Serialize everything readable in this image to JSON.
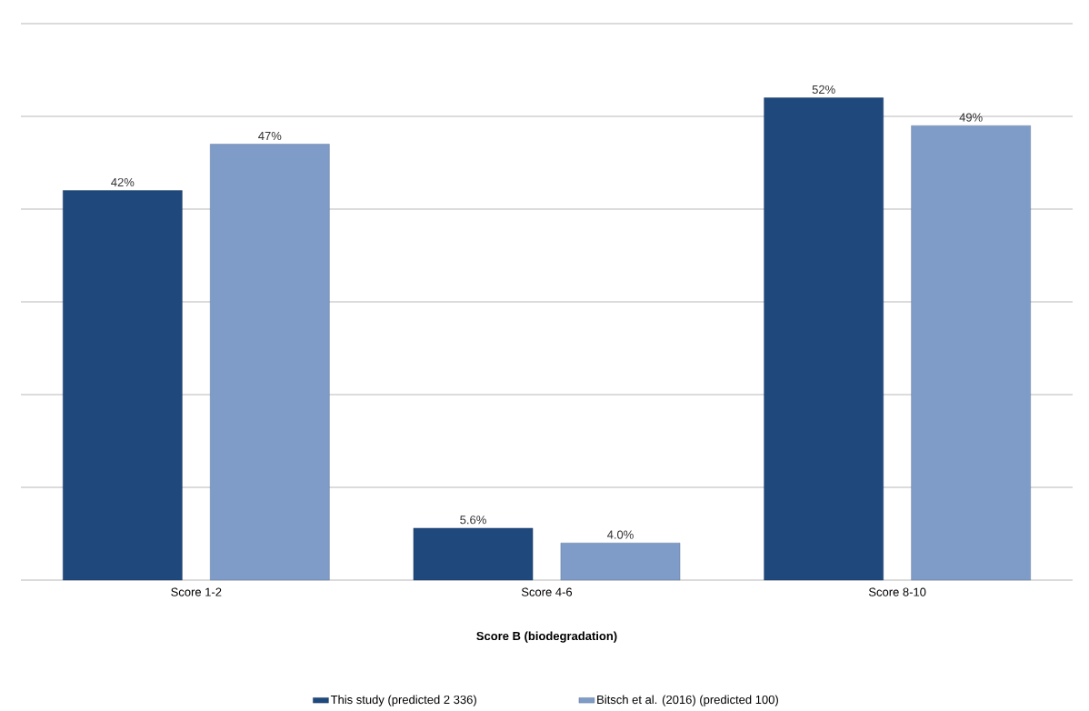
{
  "chart_data": {
    "type": "bar",
    "xlabel": "Score B (biodegradation)",
    "categories": [
      "Score 1-2",
      "Score 4-6",
      "Score 8-10"
    ],
    "series": [
      {
        "name": "This study (predicted 2 336)",
        "color": "#1f497d",
        "values": [
          42,
          5.6,
          52
        ],
        "value_labels": [
          "42%",
          "5.6%",
          "52%"
        ]
      },
      {
        "name": "Bitsch et al. (2016) (predicted 100)",
        "color": "#7f9cc8",
        "values": [
          47,
          4.0,
          49
        ],
        "value_labels": [
          "47%",
          "4.0%",
          "49%"
        ]
      }
    ],
    "ylim": [
      0,
      60
    ],
    "yticks": [
      {
        "value": 0,
        "label": null
      },
      {
        "value": 10,
        "label": null
      },
      {
        "value": 20,
        "label": null
      },
      {
        "value": 30,
        "label": null
      },
      {
        "value": 40,
        "label": null
      },
      {
        "value": 50,
        "label": null
      },
      {
        "value": 60,
        "label": null
      }
    ],
    "grid": "y",
    "legend": "bottom",
    "tick_labels": "x"
  }
}
